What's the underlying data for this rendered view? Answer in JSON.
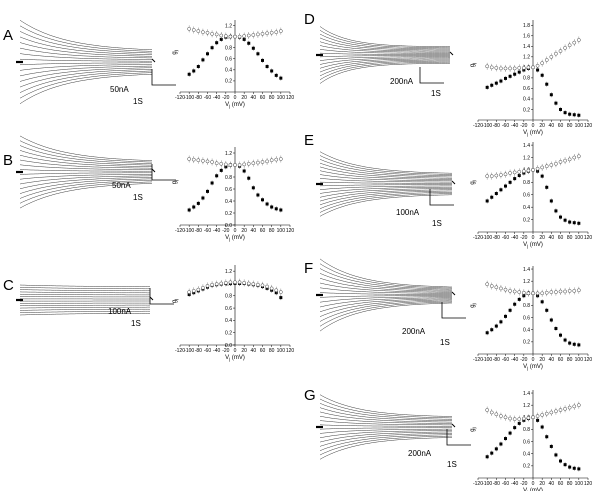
{
  "figure": {
    "panels": [
      {
        "letter": "A",
        "scale_current": "50nA",
        "scale_time": "1S",
        "traces": {
          "count": 16,
          "initial_spread": 2.2,
          "settle": 0.55,
          "decay": 0.35
        },
        "plot": {
          "xlabel": "V_j (mV)",
          "ylabel": "g_j",
          "xticks": [
            "-120",
            "-100",
            "-80",
            "-60",
            "-40",
            "-20",
            "0",
            "20",
            "40",
            "60",
            "80",
            "100",
            "120"
          ],
          "yticks": [
            "0.2",
            "0.4",
            "0.6",
            "0.8",
            "1.0",
            "1.2"
          ],
          "ylim": [
            0,
            1.3
          ],
          "gjss_x": [
            -100,
            -90,
            -80,
            -70,
            -60,
            -50,
            -40,
            -30,
            -20,
            -10,
            0,
            10,
            20,
            30,
            40,
            50,
            60,
            70,
            80,
            90,
            100
          ],
          "gjss": [
            0.32,
            0.38,
            0.46,
            0.58,
            0.69,
            0.8,
            0.89,
            0.95,
            0.99,
            1.0,
            1.0,
            0.99,
            0.95,
            0.88,
            0.79,
            0.69,
            0.57,
            0.46,
            0.38,
            0.3,
            0.25
          ],
          "gj0_x": [
            -100,
            -90,
            -80,
            -70,
            -60,
            -50,
            -40,
            -30,
            -20,
            -10,
            0,
            10,
            20,
            30,
            40,
            50,
            60,
            70,
            80,
            90,
            100
          ],
          "gj0": [
            1.14,
            1.12,
            1.1,
            1.08,
            1.07,
            1.05,
            1.04,
            1.02,
            1.01,
            1.0,
            1.0,
            1.0,
            1.01,
            1.02,
            1.03,
            1.04,
            1.05,
            1.06,
            1.07,
            1.08,
            1.1
          ]
        }
      },
      {
        "letter": "B",
        "scale_current": "50nA",
        "scale_time": "1S",
        "traces": {
          "count": 16,
          "initial_spread": 2.0,
          "settle": 0.55,
          "decay": 0.35
        },
        "plot": {
          "xlabel": "V_j (mV)",
          "ylabel": "g_j",
          "xticks": [
            "-120",
            "-100",
            "-80",
            "-60",
            "-40",
            "-20",
            "0",
            "20",
            "40",
            "60",
            "80",
            "100",
            "120"
          ],
          "yticks": [
            "0.0",
            "0.2",
            "0.4",
            "0.6",
            "0.8",
            "1.0",
            "1.2"
          ],
          "ylim": [
            0,
            1.3
          ],
          "gjss_x": [
            -100,
            -90,
            -80,
            -70,
            -60,
            -50,
            -40,
            -30,
            -20,
            -10,
            0,
            10,
            20,
            30,
            40,
            50,
            60,
            70,
            80,
            90,
            100
          ],
          "gjss": [
            0.25,
            0.3,
            0.36,
            0.45,
            0.56,
            0.7,
            0.82,
            0.91,
            0.97,
            1.0,
            1.0,
            0.98,
            0.9,
            0.78,
            0.62,
            0.5,
            0.42,
            0.35,
            0.3,
            0.27,
            0.25
          ],
          "gj0_x": [
            -100,
            -90,
            -80,
            -70,
            -60,
            -50,
            -40,
            -30,
            -20,
            -10,
            0,
            10,
            20,
            30,
            40,
            50,
            60,
            70,
            80,
            90,
            100
          ],
          "gj0": [
            1.1,
            1.09,
            1.08,
            1.07,
            1.06,
            1.05,
            1.03,
            1.02,
            1.01,
            1.0,
            1.0,
            1.0,
            1.01,
            1.02,
            1.03,
            1.04,
            1.05,
            1.06,
            1.08,
            1.09,
            1.1
          ]
        }
      },
      {
        "letter": "C",
        "scale_current": "100nA",
        "scale_time": "1S",
        "traces": {
          "count": 14,
          "initial_spread": 1.12,
          "settle": 0.97,
          "decay": 0.5
        },
        "plot": {
          "xlabel": "V_j (mV)",
          "ylabel": "g_j",
          "xticks": [
            "-120",
            "-100",
            "-80",
            "-60",
            "-40",
            "-20",
            "0",
            "20",
            "40",
            "60",
            "80",
            "100",
            "120"
          ],
          "yticks": [
            "0.0",
            "0.2",
            "0.4",
            "0.6",
            "0.8",
            "1.0",
            "1.2"
          ],
          "ylim": [
            0,
            1.3
          ],
          "gjss_x": [
            -100,
            -90,
            -80,
            -70,
            -60,
            -50,
            -40,
            -30,
            -20,
            -10,
            0,
            10,
            20,
            30,
            40,
            50,
            60,
            70,
            80,
            90,
            100
          ],
          "gjss": [
            0.82,
            0.85,
            0.88,
            0.91,
            0.94,
            0.97,
            0.98,
            0.99,
            1.0,
            1.0,
            1.0,
            1.0,
            1.0,
            0.99,
            0.98,
            0.97,
            0.95,
            0.92,
            0.89,
            0.85,
            0.77
          ],
          "gj0_x": [
            -100,
            -90,
            -80,
            -70,
            -60,
            -50,
            -40,
            -30,
            -20,
            -10,
            0,
            10,
            20,
            30,
            40,
            50,
            60,
            70,
            80,
            90,
            100
          ],
          "gj0": [
            0.86,
            0.88,
            0.9,
            0.93,
            0.96,
            0.98,
            0.99,
            1.0,
            1.01,
            1.02,
            1.02,
            1.02,
            1.01,
            1.0,
            0.99,
            0.98,
            0.97,
            0.95,
            0.92,
            0.89,
            0.86
          ]
        }
      },
      {
        "letter": "D",
        "scale_current": "200nA",
        "scale_time": "1S",
        "traces": {
          "count": 16,
          "initial_spread": 2.2,
          "settle": 0.62,
          "decay": 0.22
        },
        "plot": {
          "xlabel": "V_j (mV)",
          "ylabel": "g_j",
          "xticks": [
            "-120",
            "-100",
            "-80",
            "-60",
            "-40",
            "-20",
            "0",
            "20",
            "40",
            "60",
            "80",
            "100",
            "120"
          ],
          "yticks": [
            "0.2",
            "0.4",
            "0.6",
            "0.8",
            "1.0",
            "1.2",
            "1.4",
            "1.6",
            "1.8"
          ],
          "ylim": [
            0,
            1.9
          ],
          "gjss_x": [
            -100,
            -90,
            -80,
            -70,
            -60,
            -50,
            -40,
            -30,
            -20,
            -10,
            0,
            10,
            20,
            30,
            40,
            50,
            60,
            70,
            80,
            90,
            100
          ],
          "gjss": [
            0.62,
            0.66,
            0.7,
            0.74,
            0.79,
            0.83,
            0.87,
            0.91,
            0.95,
            0.98,
            1.0,
            0.95,
            0.85,
            0.68,
            0.48,
            0.32,
            0.2,
            0.14,
            0.11,
            0.1,
            0.09
          ],
          "gj0_x": [
            -100,
            -90,
            -80,
            -70,
            -60,
            -50,
            -40,
            -30,
            -20,
            -10,
            0,
            10,
            20,
            30,
            40,
            50,
            60,
            70,
            80,
            90,
            100
          ],
          "gj0": [
            1.02,
            1.0,
            0.99,
            0.98,
            0.98,
            0.98,
            0.98,
            0.99,
            0.99,
            1.0,
            1.0,
            1.03,
            1.08,
            1.14,
            1.2,
            1.26,
            1.31,
            1.37,
            1.42,
            1.47,
            1.52
          ]
        }
      },
      {
        "letter": "E",
        "scale_current": "100nA",
        "scale_time": "1S",
        "traces": {
          "count": 18,
          "initial_spread": 2.1,
          "settle": 0.65,
          "decay": 0.3
        },
        "plot": {
          "xlabel": "V_j (mV)",
          "ylabel": "g_j",
          "xticks": [
            "-120",
            "-100",
            "-80",
            "-60",
            "-40",
            "-20",
            "0",
            "20",
            "40",
            "60",
            "80",
            "100",
            "120"
          ],
          "yticks": [
            "0.2",
            "0.4",
            "0.6",
            "0.8",
            "1.0",
            "1.2",
            "1.4"
          ],
          "ylim": [
            0,
            1.45
          ],
          "gjss_x": [
            -100,
            -90,
            -80,
            -70,
            -60,
            -50,
            -40,
            -30,
            -20,
            -10,
            0,
            10,
            20,
            30,
            40,
            50,
            60,
            70,
            80,
            90,
            100
          ],
          "gjss": [
            0.5,
            0.56,
            0.62,
            0.68,
            0.74,
            0.8,
            0.86,
            0.91,
            0.95,
            0.98,
            1.0,
            0.98,
            0.9,
            0.72,
            0.5,
            0.34,
            0.24,
            0.19,
            0.16,
            0.15,
            0.14
          ],
          "gj0_x": [
            -100,
            -90,
            -80,
            -70,
            -60,
            -50,
            -40,
            -30,
            -20,
            -10,
            0,
            10,
            20,
            30,
            40,
            50,
            60,
            70,
            80,
            90,
            100
          ],
          "gj0": [
            0.9,
            0.9,
            0.91,
            0.92,
            0.93,
            0.95,
            0.96,
            0.97,
            0.98,
            0.99,
            1.0,
            1.02,
            1.04,
            1.06,
            1.08,
            1.1,
            1.13,
            1.15,
            1.17,
            1.2,
            1.22
          ]
        }
      },
      {
        "letter": "F",
        "scale_current": "200nA",
        "scale_time": "1S",
        "traces": {
          "count": 16,
          "initial_spread": 2.6,
          "settle": 0.5,
          "decay": 0.3
        },
        "plot": {
          "xlabel": "V_j (mV)",
          "ylabel": "g_j",
          "xticks": [
            "-120",
            "-100",
            "-80",
            "-60",
            "-40",
            "-20",
            "0",
            "20",
            "40",
            "60",
            "80",
            "100",
            "120"
          ],
          "yticks": [
            "0.2",
            "0.4",
            "0.6",
            "0.8",
            "1.0",
            "1.2",
            "1.4"
          ],
          "ylim": [
            0,
            1.45
          ],
          "gjss_x": [
            -100,
            -90,
            -80,
            -70,
            -60,
            -50,
            -40,
            -30,
            -20,
            -10,
            0,
            10,
            20,
            30,
            40,
            50,
            60,
            70,
            80,
            90,
            100
          ],
          "gjss": [
            0.35,
            0.4,
            0.46,
            0.53,
            0.62,
            0.72,
            0.82,
            0.9,
            0.96,
            1.0,
            1.0,
            0.96,
            0.86,
            0.72,
            0.56,
            0.42,
            0.31,
            0.23,
            0.18,
            0.16,
            0.15
          ],
          "gj0_x": [
            -100,
            -90,
            -80,
            -70,
            -60,
            -50,
            -40,
            -30,
            -20,
            -10,
            0,
            10,
            20,
            30,
            40,
            50,
            60,
            70,
            80,
            90,
            100
          ],
          "gj0": [
            1.15,
            1.12,
            1.1,
            1.08,
            1.06,
            1.04,
            1.03,
            1.02,
            1.01,
            1.0,
            1.0,
            1.0,
            1.0,
            1.01,
            1.02,
            1.02,
            1.03,
            1.03,
            1.04,
            1.04,
            1.05
          ]
        }
      },
      {
        "letter": "G",
        "scale_current": "200nA",
        "scale_time": "1S",
        "traces": {
          "count": 16,
          "initial_spread": 2.0,
          "settle": 0.6,
          "decay": 0.3
        },
        "plot": {
          "xlabel": "V_j (mV)",
          "ylabel": "g_j",
          "xticks": [
            "-120",
            "-100",
            "-80",
            "-60",
            "-40",
            "-20",
            "0",
            "20",
            "40",
            "60",
            "80",
            "100",
            "120"
          ],
          "yticks": [
            "0.2",
            "0.4",
            "0.6",
            "0.8",
            "1.0",
            "1.2",
            "1.4"
          ],
          "ylim": [
            0,
            1.45
          ],
          "gjss_x": [
            -100,
            -90,
            -80,
            -70,
            -60,
            -50,
            -40,
            -30,
            -20,
            -10,
            0,
            10,
            20,
            30,
            40,
            50,
            60,
            70,
            80,
            90,
            100
          ],
          "gjss": [
            0.35,
            0.41,
            0.48,
            0.56,
            0.65,
            0.74,
            0.83,
            0.9,
            0.95,
            0.98,
            1.0,
            0.95,
            0.84,
            0.68,
            0.52,
            0.38,
            0.28,
            0.22,
            0.18,
            0.16,
            0.15
          ],
          "gj0_x": [
            -100,
            -90,
            -80,
            -70,
            -60,
            -50,
            -40,
            -30,
            -20,
            -10,
            0,
            10,
            20,
            30,
            40,
            50,
            60,
            70,
            80,
            90,
            100
          ],
          "gj0": [
            1.12,
            1.08,
            1.05,
            1.02,
            1.0,
            0.98,
            0.97,
            0.97,
            0.98,
            0.99,
            1.0,
            1.02,
            1.04,
            1.06,
            1.08,
            1.1,
            1.12,
            1.14,
            1.16,
            1.18,
            1.2
          ]
        }
      }
    ]
  },
  "chart_data": [
    {
      "type": "scatter",
      "panel": "A",
      "xlabel": "V_j (mV)",
      "ylabel": "g_j",
      "xlim": [
        -120,
        120
      ],
      "ylim": [
        0,
        1.3
      ]
    },
    {
      "type": "scatter",
      "panel": "B",
      "xlabel": "V_j (mV)",
      "ylabel": "g_j",
      "xlim": [
        -120,
        120
      ],
      "ylim": [
        0,
        1.3
      ]
    },
    {
      "type": "scatter",
      "panel": "C",
      "xlabel": "V_j (mV)",
      "ylabel": "g_j",
      "xlim": [
        -120,
        120
      ],
      "ylim": [
        0,
        1.3
      ]
    },
    {
      "type": "scatter",
      "panel": "D",
      "xlabel": "V_j (mV)",
      "ylabel": "g_j",
      "xlim": [
        -120,
        120
      ],
      "ylim": [
        0,
        1.9
      ]
    },
    {
      "type": "scatter",
      "panel": "E",
      "xlabel": "V_j (mV)",
      "ylabel": "g_j",
      "xlim": [
        -120,
        120
      ],
      "ylim": [
        0,
        1.45
      ]
    },
    {
      "type": "scatter",
      "panel": "F",
      "xlabel": "V_j (mV)",
      "ylabel": "g_j",
      "xlim": [
        -120,
        120
      ],
      "ylim": [
        0,
        1.45
      ]
    },
    {
      "type": "scatter",
      "panel": "G",
      "xlabel": "V_j (mV)",
      "ylabel": "g_j",
      "xlim": [
        -120,
        120
      ],
      "ylim": [
        0,
        1.45
      ]
    }
  ]
}
